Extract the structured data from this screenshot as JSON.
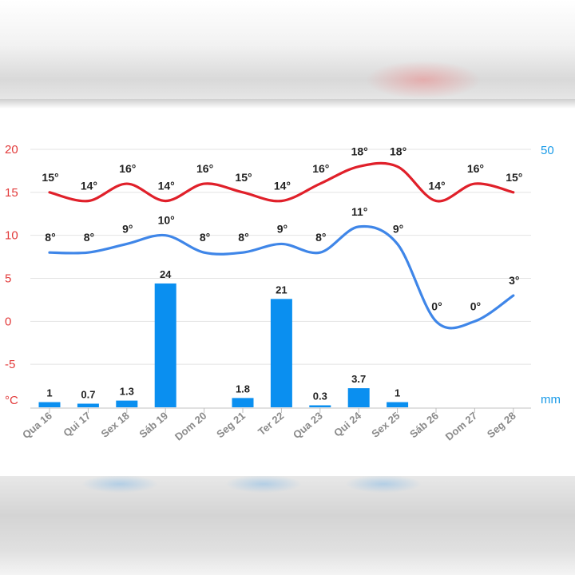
{
  "chart_data": {
    "type": "line",
    "categories": [
      "Qua 16",
      "Qui 17",
      "Sex 18",
      "Sáb 19",
      "Dom 20",
      "Seg 21",
      "Ter 22",
      "Qua 23",
      "Qui 24",
      "Sex 25",
      "Sáb 26",
      "Dom 27",
      "Seg 28"
    ],
    "series": [
      {
        "type": "line",
        "values": [
          15,
          14,
          16,
          14,
          16,
          15,
          14,
          16,
          18,
          18,
          14,
          16,
          15
        ],
        "labels": [
          "15°",
          "14°",
          "16°",
          "14°",
          "16°",
          "15°",
          "14°",
          "16°",
          "18°",
          "18°",
          "14°",
          "16°",
          "15°"
        ],
        "color": "#e0202a"
      },
      {
        "type": "line",
        "values": [
          8,
          8,
          9,
          10,
          8,
          8,
          9,
          8,
          11,
          9,
          0,
          0,
          3
        ],
        "labels": [
          "8°",
          "8°",
          "9°",
          "10°",
          "8°",
          "8°",
          "9°",
          "8°",
          "11°",
          "9°",
          "0°",
          "0°",
          "3°"
        ],
        "color": "#3f86e8"
      },
      {
        "type": "bar",
        "axis": "right",
        "values": [
          1,
          0.7,
          1.3,
          24,
          0,
          1.8,
          21,
          0.3,
          3.7,
          1,
          0,
          0,
          0
        ],
        "labels": [
          "1",
          "0.7",
          "1.3",
          "24",
          "",
          "1.8",
          "21",
          "0.3",
          "3.7",
          "1",
          "",
          "",
          ""
        ],
        "color": "#0a8ff0"
      }
    ],
    "y_left": {
      "unit": "°C",
      "ticks": [
        "20",
        "15",
        "10",
        "5",
        "0",
        "-5"
      ],
      "ylim": [
        -10,
        20
      ]
    },
    "y_right": {
      "unit": "mm",
      "ticks": [
        "50"
      ],
      "ylim": [
        0,
        50
      ]
    },
    "grid": true,
    "legend": "none"
  }
}
